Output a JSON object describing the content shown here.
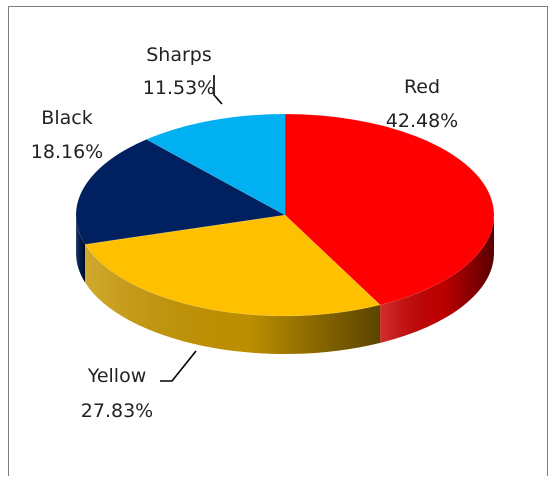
{
  "chart_data": {
    "type": "pie",
    "title": "",
    "is_3d": true,
    "legend": "none",
    "slices": [
      {
        "label": "Red",
        "value_text": "42.48%",
        "value": 42.48,
        "color": "#ff0000"
      },
      {
        "label": "Yellow",
        "value_text": "27.83%",
        "value": 27.83,
        "color": "#ffc000"
      },
      {
        "label": "Black",
        "value_text": "18.16%",
        "value": 18.16,
        "color": "#002060"
      },
      {
        "label": "Sharps",
        "value_text": "11.53%",
        "value": 11.53,
        "color": "#00b0f0"
      }
    ]
  }
}
